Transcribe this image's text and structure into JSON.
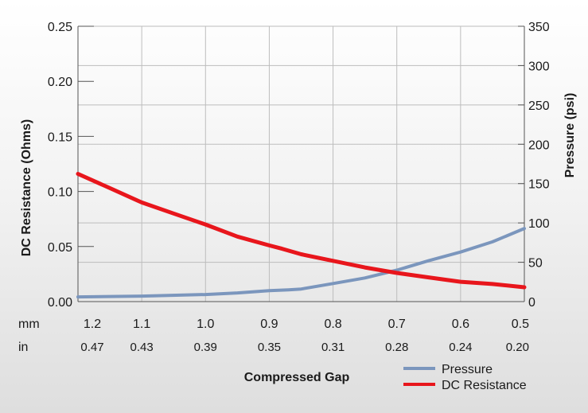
{
  "chart_data": {
    "type": "line",
    "xlabel": "Compressed Gap",
    "ylabel_left": "DC Resistance (Ohms)",
    "ylabel_right": "Pressure (psi)",
    "ylim_left": [
      0,
      0.25
    ],
    "ylim_right": [
      0,
      350
    ],
    "xlim_mm": [
      1.2,
      0.5
    ],
    "grid": true,
    "legend_placement": "bottom-right",
    "x_unit_labels": [
      "mm",
      "in"
    ],
    "x_ticks_mm": [
      "1.2",
      "1.1",
      "1.0",
      "0.9",
      "0.8",
      "0.7",
      "0.6",
      "0.5"
    ],
    "x_ticks_in": [
      "0.47",
      "0.43",
      "0.39",
      "0.35",
      "0.31",
      "0.28",
      "0.24",
      "0.20"
    ],
    "y_ticks_left": [
      "0.00",
      "0.05",
      "0.10",
      "0.15",
      "0.20",
      "0.25"
    ],
    "y_ticks_right": [
      "0",
      "50",
      "100",
      "150",
      "200",
      "250",
      "300",
      "350"
    ],
    "series": [
      {
        "name": "Pressure",
        "axis": "right",
        "color": "#7b96bd",
        "x": [
          1.2,
          1.1,
          1.0,
          0.95,
          0.9,
          0.87,
          0.85,
          0.8,
          0.75,
          0.7,
          0.65,
          0.6,
          0.55,
          0.5
        ],
        "y": [
          6,
          7,
          9,
          11,
          14,
          15,
          16,
          23,
          30,
          40,
          52,
          63,
          76,
          93
        ]
      },
      {
        "name": "DC Resistance",
        "axis": "left",
        "color": "#e8161c",
        "x": [
          1.2,
          1.15,
          1.1,
          1.05,
          1.0,
          0.95,
          0.9,
          0.88,
          0.85,
          0.8,
          0.75,
          0.7,
          0.65,
          0.6,
          0.55,
          0.5
        ],
        "y": [
          0.116,
          0.103,
          0.09,
          0.08,
          0.07,
          0.059,
          0.051,
          0.048,
          0.043,
          0.037,
          0.031,
          0.026,
          0.022,
          0.018,
          0.016,
          0.013
        ]
      }
    ]
  }
}
